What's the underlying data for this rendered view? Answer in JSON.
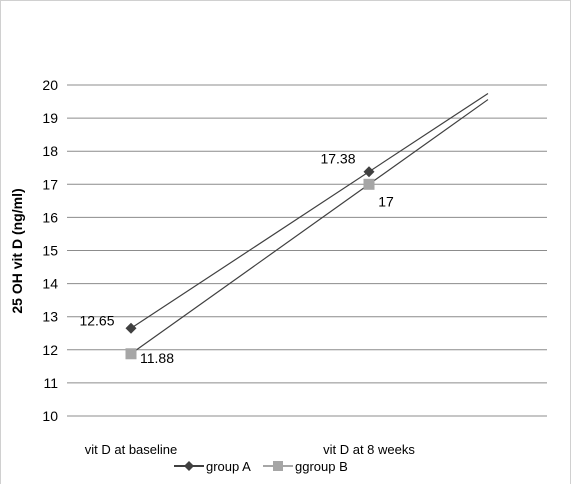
{
  "chart_data": {
    "type": "line",
    "ylabel": "25 OH vit D (ng/ml)",
    "xlabel": "",
    "title": "",
    "categories": [
      "vit D at baseline",
      "vit D at 8  weeks"
    ],
    "ylim": [
      10,
      20
    ],
    "yticks": [
      10,
      11,
      12,
      13,
      14,
      15,
      16,
      17,
      18,
      19,
      20
    ],
    "grid": true,
    "legend_position": "bottom",
    "series": [
      {
        "name": "group A",
        "values": [
          12.65,
          17.38
        ],
        "labels": [
          "12.65",
          "17.38"
        ],
        "marker": "diamond",
        "color": "#404040"
      },
      {
        "name": "ggroup B",
        "values": [
          11.88,
          17
        ],
        "labels": [
          "11.88",
          "17"
        ],
        "marker": "square",
        "color": "#a6a6a6"
      }
    ],
    "trend_color": "#404040",
    "gridline_color": "#8c8c8c"
  }
}
